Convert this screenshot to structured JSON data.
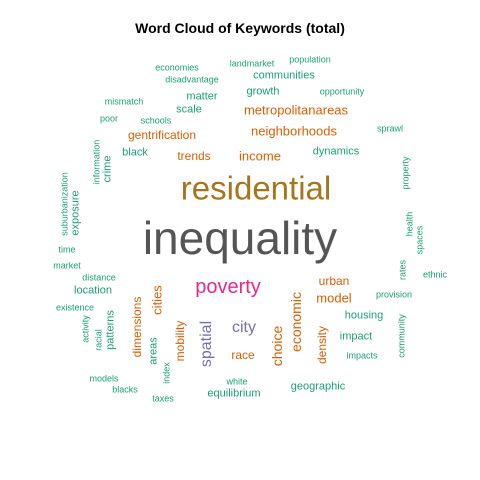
{
  "chart_data": {
    "type": "wordcloud",
    "title": "Word Cloud of Keywords (total)",
    "colors": {
      "inequality": "#555555",
      "residential": "#a6761d",
      "poverty": "#e7298a",
      "purple": "#7570b3",
      "orange": "#d95f02",
      "green": "#1b9e77",
      "title": "#000000"
    },
    "words": [
      {
        "text": "inequality",
        "color": "#555555",
        "rank": 1
      },
      {
        "text": "residential",
        "color": "#a6761d",
        "rank": 2
      },
      {
        "text": "poverty",
        "color": "#e7298a",
        "rank": 3
      },
      {
        "text": "spatial",
        "color": "#7570b3",
        "rank": 4,
        "vertical": true
      },
      {
        "text": "city",
        "color": "#7570b3",
        "rank": 4
      },
      {
        "text": "economic",
        "color": "#d95f02",
        "rank": 5,
        "vertical": true
      },
      {
        "text": "choice",
        "color": "#d95f02",
        "rank": 5,
        "vertical": true
      },
      {
        "text": "neighborhoods",
        "color": "#d95f02",
        "rank": 5
      },
      {
        "text": "metropolitanareas",
        "color": "#d95f02",
        "rank": 5
      },
      {
        "text": "model",
        "color": "#d95f02",
        "rank": 5
      },
      {
        "text": "income",
        "color": "#d95f02",
        "rank": 5
      },
      {
        "text": "cities",
        "color": "#d95f02",
        "rank": 5,
        "vertical": true
      },
      {
        "text": "gentrification",
        "color": "#d95f02",
        "rank": 6
      },
      {
        "text": "urban",
        "color": "#d95f02",
        "rank": 6
      },
      {
        "text": "dimensions",
        "color": "#d95f02",
        "rank": 6,
        "vertical": true
      },
      {
        "text": "mobility",
        "color": "#d95f02",
        "rank": 6,
        "vertical": true
      },
      {
        "text": "density",
        "color": "#d95f02",
        "rank": 6,
        "vertical": true
      },
      {
        "text": "race",
        "color": "#d95f02",
        "rank": 6
      },
      {
        "text": "trends",
        "color": "#d95f02",
        "rank": 6
      },
      {
        "text": "housing",
        "color": "#1b9e77",
        "rank": 7
      },
      {
        "text": "impact",
        "color": "#1b9e77",
        "rank": 7
      },
      {
        "text": "communities",
        "color": "#1b9e77",
        "rank": 7
      },
      {
        "text": "location",
        "color": "#1b9e77",
        "rank": 7
      },
      {
        "text": "geographic",
        "color": "#1b9e77",
        "rank": 7
      },
      {
        "text": "equilibrium",
        "color": "#1b9e77",
        "rank": 7
      },
      {
        "text": "growth",
        "color": "#1b9e77",
        "rank": 7
      },
      {
        "text": "matter",
        "color": "#1b9e77",
        "rank": 7
      },
      {
        "text": "scale",
        "color": "#1b9e77",
        "rank": 7
      },
      {
        "text": "dynamics",
        "color": "#1b9e77",
        "rank": 7
      },
      {
        "text": "black",
        "color": "#1b9e77",
        "rank": 7
      },
      {
        "text": "exposure",
        "color": "#1b9e77",
        "rank": 7,
        "vertical": true
      },
      {
        "text": "crime",
        "color": "#1b9e77",
        "rank": 7,
        "vertical": true
      },
      {
        "text": "areas",
        "color": "#1b9e77",
        "rank": 7,
        "vertical": true
      },
      {
        "text": "patterns",
        "color": "#1b9e77",
        "rank": 7,
        "vertical": true
      },
      {
        "text": "community",
        "color": "#1b9e77",
        "rank": 8,
        "vertical": true
      },
      {
        "text": "sprawl",
        "color": "#1b9e77",
        "rank": 8
      },
      {
        "text": "opportunity",
        "color": "#1b9e77",
        "rank": 8
      },
      {
        "text": "population",
        "color": "#1b9e77",
        "rank": 8
      },
      {
        "text": "landmarket",
        "color": "#1b9e77",
        "rank": 8
      },
      {
        "text": "economies",
        "color": "#1b9e77",
        "rank": 8
      },
      {
        "text": "disadvantage",
        "color": "#1b9e77",
        "rank": 8
      },
      {
        "text": "mismatch",
        "color": "#1b9e77",
        "rank": 8
      },
      {
        "text": "poor",
        "color": "#1b9e77",
        "rank": 8
      },
      {
        "text": "schools",
        "color": "#1b9e77",
        "rank": 8
      },
      {
        "text": "information",
        "color": "#1b9e77",
        "rank": 8,
        "vertical": true
      },
      {
        "text": "suburbanization",
        "color": "#1b9e77",
        "rank": 8,
        "vertical": true
      },
      {
        "text": "time",
        "color": "#1b9e77",
        "rank": 8
      },
      {
        "text": "market",
        "color": "#1b9e77",
        "rank": 8
      },
      {
        "text": "distance",
        "color": "#1b9e77",
        "rank": 8
      },
      {
        "text": "existence",
        "color": "#1b9e77",
        "rank": 8
      },
      {
        "text": "activity",
        "color": "#1b9e77",
        "rank": 8,
        "vertical": true
      },
      {
        "text": "racial",
        "color": "#1b9e77",
        "rank": 8,
        "vertical": true
      },
      {
        "text": "models",
        "color": "#1b9e77",
        "rank": 8
      },
      {
        "text": "blacks",
        "color": "#1b9e77",
        "rank": 8
      },
      {
        "text": "index",
        "color": "#1b9e77",
        "rank": 8,
        "vertical": true
      },
      {
        "text": "taxes",
        "color": "#1b9e77",
        "rank": 8
      },
      {
        "text": "white",
        "color": "#1b9e77",
        "rank": 8
      },
      {
        "text": "impacts",
        "color": "#1b9e77",
        "rank": 8
      },
      {
        "text": "provision",
        "color": "#1b9e77",
        "rank": 8
      },
      {
        "text": "ethnic",
        "color": "#1b9e77",
        "rank": 8
      },
      {
        "text": "rates",
        "color": "#1b9e77",
        "rank": 8,
        "vertical": true
      },
      {
        "text": "health",
        "color": "#1b9e77",
        "rank": 8,
        "vertical": true
      },
      {
        "text": "spaces",
        "color": "#1b9e77",
        "rank": 8,
        "vertical": true
      },
      {
        "text": "property",
        "color": "#1b9e77",
        "rank": 8,
        "vertical": true
      }
    ]
  }
}
